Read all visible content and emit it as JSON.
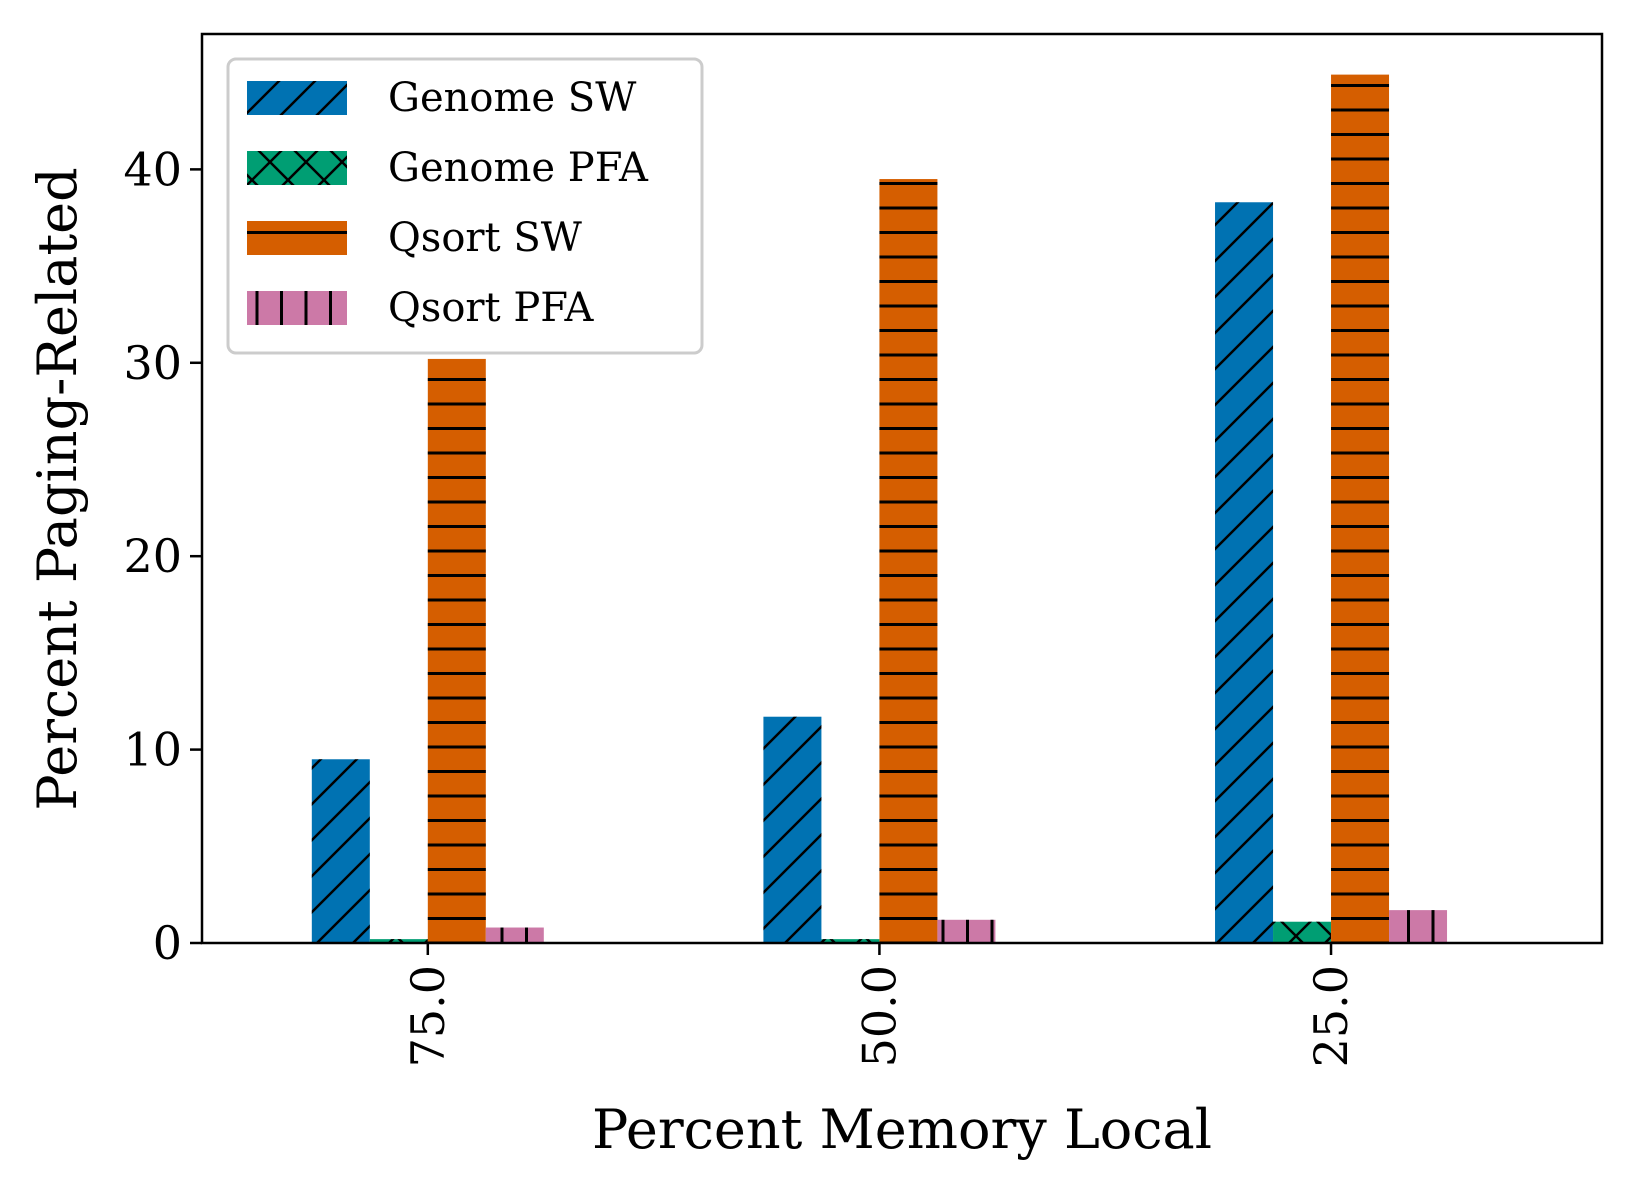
{
  "chart_data": {
    "type": "bar",
    "xlabel": "Percent Memory Local",
    "ylabel": "Percent Paging-Related",
    "categories": [
      "75.0",
      "50.0",
      "25.0"
    ],
    "ylim": [
      0,
      47
    ],
    "yticks": [
      0,
      10,
      20,
      30,
      40
    ],
    "grid": false,
    "legend_position": "top-left",
    "series": [
      {
        "name": "Genome SW",
        "values": [
          9.5,
          11.7,
          38.3
        ],
        "color": "#0072b2",
        "hatch": "diagonal"
      },
      {
        "name": "Genome PFA",
        "values": [
          0.2,
          0.2,
          1.1
        ],
        "color": "#009e73",
        "hatch": "cross"
      },
      {
        "name": "Qsort SW",
        "values": [
          30.2,
          39.5,
          44.9
        ],
        "color": "#d55e00",
        "hatch": "horizontal"
      },
      {
        "name": "Qsort PFA",
        "values": [
          0.8,
          1.2,
          1.7
        ],
        "color": "#cc79a7",
        "hatch": "vertical"
      }
    ]
  }
}
